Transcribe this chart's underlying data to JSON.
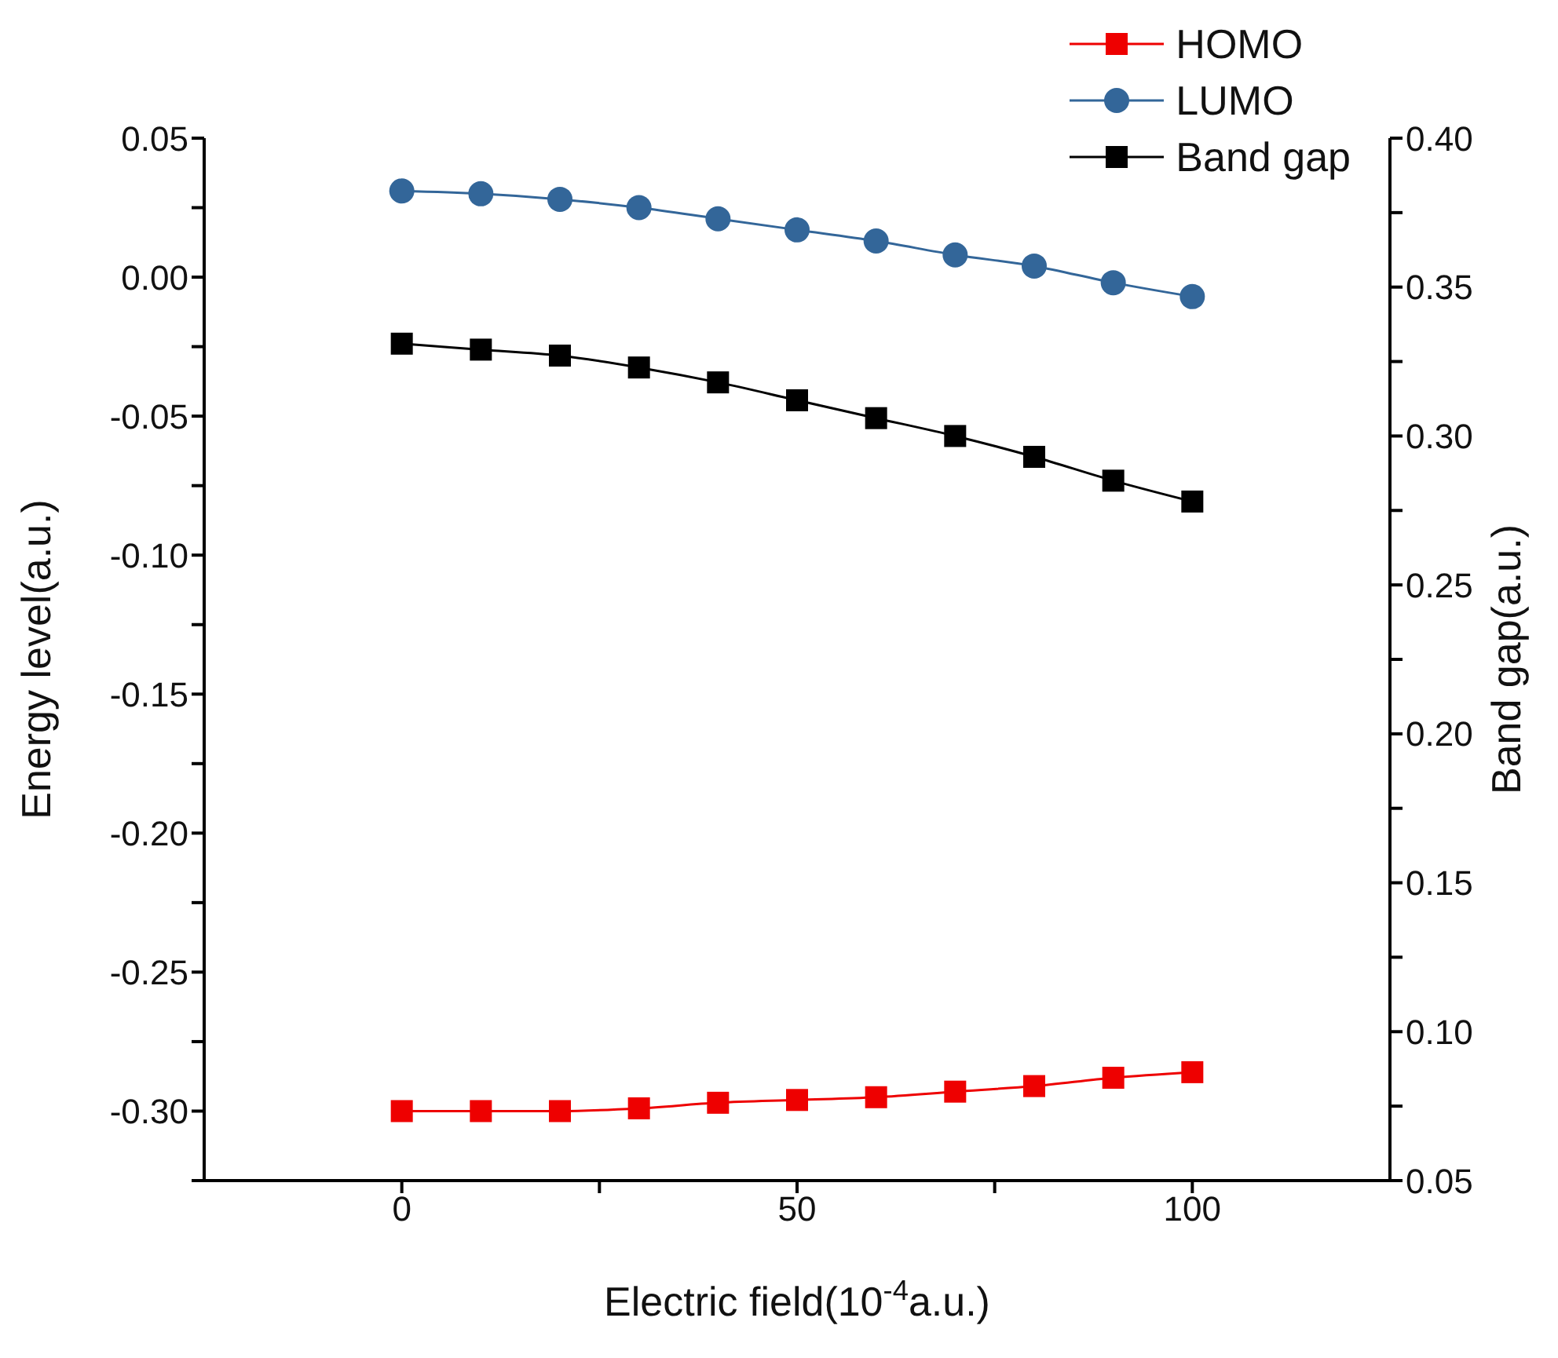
{
  "chart_data": {
    "type": "line",
    "x": [
      0,
      10,
      20,
      30,
      40,
      50,
      60,
      70,
      80,
      90,
      100
    ],
    "series": [
      {
        "name": "HOMO",
        "color": "#ee0000",
        "marker": "square",
        "values": [
          -0.3,
          -0.3,
          -0.3,
          -0.299,
          -0.297,
          -0.296,
          -0.295,
          -0.293,
          -0.291,
          -0.288,
          -0.286
        ]
      },
      {
        "name": "LUMO",
        "color": "#336699",
        "marker": "circle",
        "values": [
          0.031,
          0.03,
          0.028,
          0.025,
          0.021,
          0.017,
          0.013,
          0.008,
          0.004,
          -0.002,
          -0.007
        ]
      },
      {
        "name": "Band gap",
        "color": "#000000",
        "marker": "square",
        "axis": "y2",
        "values": [
          0.331,
          0.329,
          0.327,
          0.323,
          0.318,
          0.312,
          0.306,
          0.3,
          0.293,
          0.285,
          0.278
        ]
      }
    ],
    "xlabel": "Electric field(10$^{-4}$a.u.)",
    "ylabel": "Energy level(a.u.)",
    "y2label": "Band gap(a.u.)",
    "xlim": [
      -25,
      125
    ],
    "xticks": [
      0,
      {
        "value": 25,
        "label": null
      },
      50,
      {
        "value": 75,
        "label": null
      },
      100
    ],
    "ylim": [
      -0.325,
      0.05
    ],
    "yticks": [
      {
        "value": -0.325,
        "label": null
      },
      {
        "value": -0.3,
        "label": "-0.30"
      },
      {
        "value": -0.275,
        "label": null
      },
      {
        "value": -0.25,
        "label": "-0.25"
      },
      {
        "value": -0.225,
        "label": null
      },
      {
        "value": -0.2,
        "label": "-0.20"
      },
      {
        "value": -0.175,
        "label": null
      },
      {
        "value": -0.15,
        "label": "-0.15"
      },
      {
        "value": -0.125,
        "label": null
      },
      {
        "value": -0.1,
        "label": "-0.10"
      },
      {
        "value": -0.075,
        "label": null
      },
      {
        "value": -0.05,
        "label": "-0.05"
      },
      {
        "value": -0.025,
        "label": null
      },
      {
        "value": 0,
        "label": "0.00"
      },
      {
        "value": 0.025,
        "label": null
      },
      {
        "value": 0.05,
        "label": "0.05"
      }
    ],
    "y2lim": [
      0.05,
      0.4
    ],
    "y2ticks": [
      {
        "value": 0.05,
        "label": "0.05"
      },
      {
        "value": 0.075,
        "label": null
      },
      {
        "value": 0.1,
        "label": "0.10"
      },
      {
        "value": 0.125,
        "label": null
      },
      {
        "value": 0.15,
        "label": "0.15"
      },
      {
        "value": 0.175,
        "label": null
      },
      {
        "value": 0.2,
        "label": "0.20"
      },
      {
        "value": 0.225,
        "label": null
      },
      {
        "value": 0.25,
        "label": "0.25"
      },
      {
        "value": 0.275,
        "label": null
      },
      {
        "value": 0.3,
        "label": "0.30"
      },
      {
        "value": 0.325,
        "label": null
      },
      {
        "value": 0.35,
        "label": "0.35"
      },
      {
        "value": 0.375,
        "label": null
      },
      {
        "value": 0.4,
        "label": "0.40"
      }
    ],
    "grid": false,
    "legend": "top right",
    "line_style": "solid"
  }
}
